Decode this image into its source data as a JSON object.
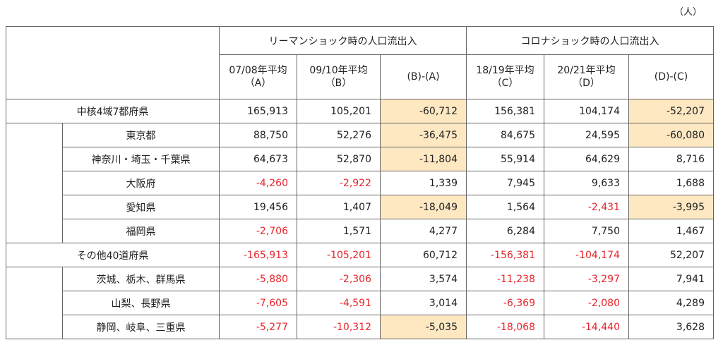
{
  "unit": "（人）",
  "table": {
    "header": {
      "groups": [
        "リーマンショック時の人口流出入",
        "コロナショック時の人口流出入"
      ],
      "columns": [
        [
          "07/08年平均",
          "（A）"
        ],
        [
          "09/10年平均",
          "（B）"
        ],
        [
          "(B)-(A)"
        ],
        [
          "18/19年平均",
          "（C）"
        ],
        [
          "20/21年平均",
          "（D）"
        ],
        [
          "(D)-(C)"
        ]
      ]
    },
    "groups": [
      {
        "label": "中核4域7都府県",
        "cells": [
          "165,913",
          "105,201",
          "-60,712",
          "156,381",
          "104,174",
          "-52,207"
        ],
        "children": [
          {
            "label": "東京都",
            "cells": [
              "88,750",
              "52,276",
              "-36,475",
              "84,675",
              "24,595",
              "-60,080"
            ]
          },
          {
            "label": "神奈川・埼玉・千葉県",
            "cells": [
              "64,673",
              "52,870",
              "-11,804",
              "55,914",
              "64,629",
              "8,716"
            ]
          },
          {
            "label": "大阪府",
            "cells": [
              "-4,260",
              "-2,922",
              "1,339",
              "7,945",
              "9,633",
              "1,688"
            ]
          },
          {
            "label": "愛知県",
            "cells": [
              "19,456",
              "1,407",
              "-18,049",
              "1,564",
              "-2,431",
              "-3,995"
            ]
          },
          {
            "label": "福岡県",
            "cells": [
              "-2,706",
              "1,571",
              "4,277",
              "6,284",
              "7,750",
              "1,467"
            ]
          }
        ]
      },
      {
        "label": "その他40道府県",
        "cells": [
          "-165,913",
          "-105,201",
          "60,712",
          "-156,381",
          "-104,174",
          "52,207"
        ],
        "children": [
          {
            "label": "茨城、栃木、群馬県",
            "cells": [
              "-5,880",
              "-2,306",
              "3,574",
              "-11,238",
              "-3,297",
              "7,941"
            ]
          },
          {
            "label": "山梨、長野県",
            "cells": [
              "-7,605",
              "-4,591",
              "3,014",
              "-6,369",
              "-2,080",
              "4,289"
            ]
          },
          {
            "label": "静岡、岐阜、三重県",
            "cells": [
              "-5,277",
              "-10,312",
              "-5,035",
              "-18,068",
              "-14,440",
              "3,628"
            ]
          }
        ]
      }
    ]
  }
}
